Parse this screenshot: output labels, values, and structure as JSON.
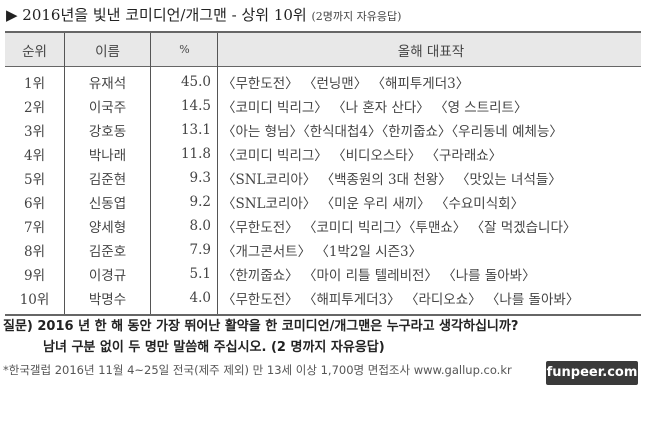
{
  "title": {
    "main": "▶ 2016년을 빛낸 코미디언/개그맨  -  상위 10위",
    "sub": "(2명까지 자유응답)"
  },
  "table": {
    "headers": [
      "순위",
      "이름",
      "%",
      "올해 대표작"
    ],
    "rows": [
      [
        "1위",
        "유재석",
        "45.0",
        "〈무한도전〉 〈런닝맨〉 〈해피투게더3〉"
      ],
      [
        "2위",
        "이국주",
        "14.5",
        "〈코미디 빅리그〉 〈나 혼자 산다〉 〈영 스트리트〉"
      ],
      [
        "3위",
        "강호동",
        "13.1",
        "〈아는 형님〉〈한식대첩4〉〈한끼줍쇼〉〈우리동네 예체능〉"
      ],
      [
        "4위",
        "박나래",
        "11.8",
        "〈코미디 빅리그〉 〈비디오스타〉 〈구라래쇼〉"
      ],
      [
        "5위",
        "김준현",
        "9.3",
        "〈SNL코리아〉 〈백종원의 3대 천왕〉 〈맛있는 녀석들〉"
      ],
      [
        "6위",
        "신동엽",
        "9.2",
        "〈SNL코리아〉 〈미운 우리 새끼〉 〈수요미식회〉"
      ],
      [
        "7위",
        "양세형",
        "8.0",
        "〈무한도전〉 〈코미디 빅리그〉〈투맨쇼〉 〈잘 먹겠습니다〉"
      ],
      [
        "8위",
        "김준호",
        "7.9",
        "〈개그콘서트〉 〈1박2일 시즌3〉"
      ],
      [
        "9위",
        "이경규",
        "5.1",
        "〈한끼줍쇼〉 〈마이 리틀 텔레비전〉 〈나를 돌아봐〉"
      ],
      [
        "10위",
        "박명수",
        "4.0",
        "〈무한도전〉 〈해피투게더3〉 〈라디오쇼〉 〈나를 돌아봐〉"
      ]
    ]
  },
  "question": {
    "line1": "질문) 2016 년 한 해 동안 가장 뛰어난 활약을 한 코미디언/개그맨은 누구라고 생각하십니까?",
    "line2": "남녀 구분 없이 두 명만 말씀해 주십시오. (2 명까지 자유응답)"
  },
  "note": "*한국갤럽 2016년 11월 4~25일 전국(제주 제외) 만 13세 이상 1,700명 면접조사 www.gallup.co.kr",
  "watermark": "funpeer.com"
}
